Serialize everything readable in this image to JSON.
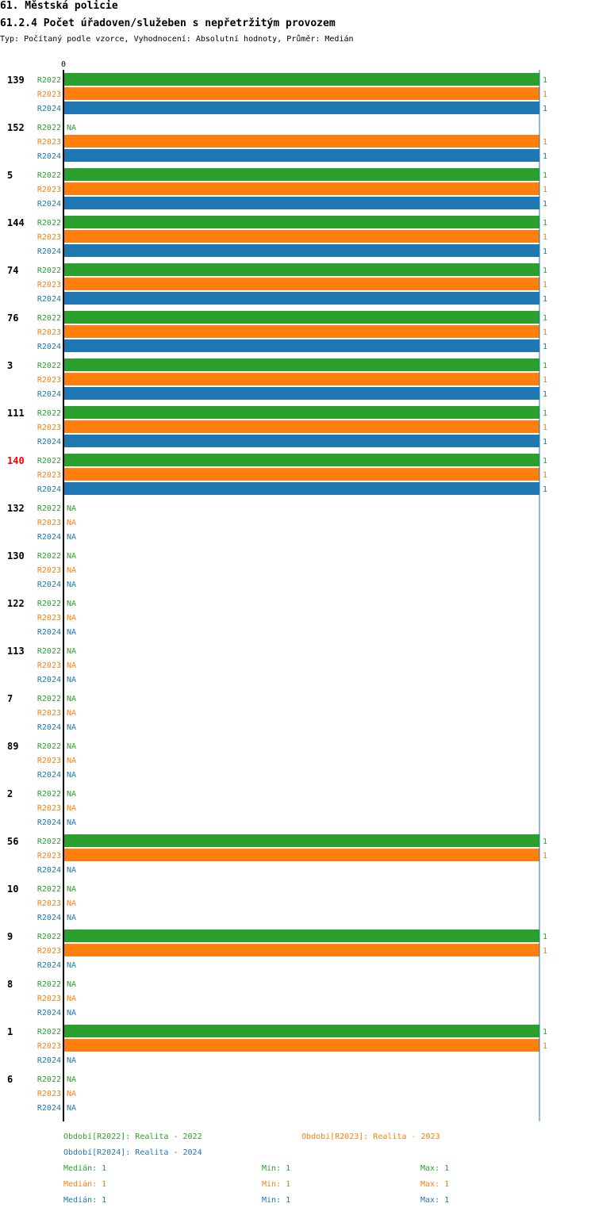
{
  "header": {
    "title": "61. Městská policie",
    "subtitle": "61.2.4 Počet úřadoven/služeben s nepřetržitým provozem",
    "description": "Typ: Počítaný podle vzorce, Vyhodnocení: Absolutní hodnoty, Průměr: Medián"
  },
  "colors": {
    "R2022": "#2ca02c",
    "R2023": "#ff7f0e",
    "R2024": "#1f77b4",
    "highlight": "#ff0000",
    "axis": "#000000"
  },
  "chart_data": {
    "type": "bar",
    "orientation": "horizontal",
    "axis_min_label": "0",
    "xlim": [
      0,
      1
    ],
    "series_names": [
      "R2022",
      "R2023",
      "R2024"
    ],
    "na_label": "NA",
    "categories": [
      {
        "label": "139",
        "highlight": false,
        "values": [
          1,
          1,
          1
        ]
      },
      {
        "label": "152",
        "highlight": false,
        "values": [
          null,
          1,
          1
        ]
      },
      {
        "label": "5",
        "highlight": false,
        "values": [
          1,
          1,
          1
        ]
      },
      {
        "label": "144",
        "highlight": false,
        "values": [
          1,
          1,
          1
        ]
      },
      {
        "label": "74",
        "highlight": false,
        "values": [
          1,
          1,
          1
        ]
      },
      {
        "label": "76",
        "highlight": false,
        "values": [
          1,
          1,
          1
        ]
      },
      {
        "label": "3",
        "highlight": false,
        "values": [
          1,
          1,
          1
        ]
      },
      {
        "label": "111",
        "highlight": false,
        "values": [
          1,
          1,
          1
        ]
      },
      {
        "label": "140",
        "highlight": true,
        "values": [
          1,
          1,
          1
        ]
      },
      {
        "label": "132",
        "highlight": false,
        "values": [
          null,
          null,
          null
        ]
      },
      {
        "label": "130",
        "highlight": false,
        "values": [
          null,
          null,
          null
        ]
      },
      {
        "label": "122",
        "highlight": false,
        "values": [
          null,
          null,
          null
        ]
      },
      {
        "label": "113",
        "highlight": false,
        "values": [
          null,
          null,
          null
        ]
      },
      {
        "label": "7",
        "highlight": false,
        "values": [
          null,
          null,
          null
        ]
      },
      {
        "label": "89",
        "highlight": false,
        "values": [
          null,
          null,
          null
        ]
      },
      {
        "label": "2",
        "highlight": false,
        "values": [
          null,
          null,
          null
        ]
      },
      {
        "label": "56",
        "highlight": false,
        "values": [
          1,
          1,
          null
        ]
      },
      {
        "label": "10",
        "highlight": false,
        "values": [
          null,
          null,
          null
        ]
      },
      {
        "label": "9",
        "highlight": false,
        "values": [
          1,
          1,
          null
        ]
      },
      {
        "label": "8",
        "highlight": false,
        "values": [
          null,
          null,
          null
        ]
      },
      {
        "label": "1",
        "highlight": false,
        "values": [
          1,
          1,
          null
        ]
      },
      {
        "label": "6",
        "highlight": false,
        "values": [
          null,
          null,
          null
        ]
      }
    ]
  },
  "legend": {
    "periods": [
      {
        "series": "R2022",
        "text": "Období[R2022]: Realita - 2022"
      },
      {
        "series": "R2023",
        "text": "Období[R2023]: Realita - 2023"
      },
      {
        "series": "R2024",
        "text": "Období[R2024]: Realita - 2024"
      }
    ],
    "stats": [
      {
        "series": "R2022",
        "median": "Medián: 1",
        "min": "Min: 1",
        "max": "Max: 1"
      },
      {
        "series": "R2023",
        "median": "Medián: 1",
        "min": "Min: 1",
        "max": "Max: 1"
      },
      {
        "series": "R2024",
        "median": "Medián: 1",
        "min": "Min: 1",
        "max": "Max: 1"
      }
    ]
  }
}
